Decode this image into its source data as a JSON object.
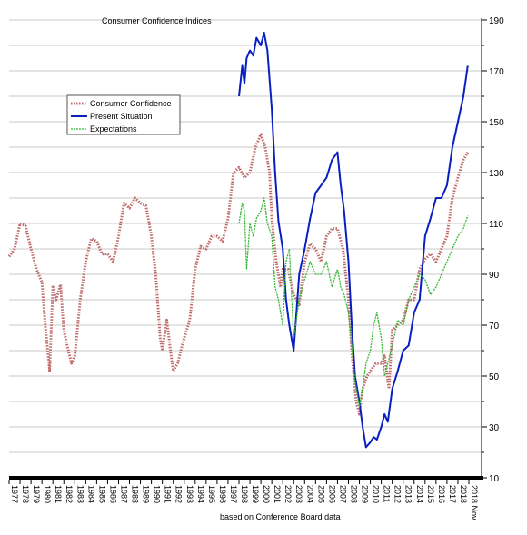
{
  "chart_data": {
    "type": "line",
    "title": "Consumer Confidence Indices",
    "source_note": "based on Conference Board data",
    "ylim": [
      10,
      190
    ],
    "yticks": [
      10,
      30,
      50,
      70,
      90,
      110,
      130,
      150,
      170,
      190
    ],
    "xlim": [
      1977,
      2019
    ],
    "x_tick_labels": [
      "1977",
      "1978",
      "1979",
      "1980",
      "1981",
      "1982",
      "1983",
      "1984",
      "1985",
      "1986",
      "1987",
      "1988",
      "1989",
      "1990",
      "1991",
      "1992",
      "1993",
      "1994",
      "1995",
      "1996",
      "1997",
      "1998",
      "1999",
      "2000",
      "2001",
      "2002",
      "2003",
      "2004",
      "2005",
      "2006",
      "2007",
      "2008",
      "2009",
      "2010",
      "2011",
      "2012",
      "2013",
      "2014",
      "2015",
      "2016",
      "2017",
      "2018",
      "2018 Nov"
    ],
    "grid": true,
    "legend_position": "upper-left",
    "series": [
      {
        "name": "Consumer Confidence",
        "color": "#c06a6a",
        "x": [
          1977.0,
          1977.5,
          1978.0,
          1978.5,
          1979.0,
          1979.5,
          1980.0,
          1980.3,
          1980.7,
          1981.0,
          1981.3,
          1981.7,
          1982.0,
          1982.3,
          1982.7,
          1983.0,
          1983.5,
          1984.0,
          1984.5,
          1985.0,
          1985.5,
          1986.0,
          1986.5,
          1987.0,
          1987.5,
          1988.0,
          1988.5,
          1989.0,
          1989.5,
          1990.0,
          1990.4,
          1990.8,
          1991.0,
          1991.4,
          1991.8,
          1992.0,
          1992.4,
          1992.8,
          1993.0,
          1993.5,
          1994.0,
          1994.5,
          1995.0,
          1995.5,
          1996.0,
          1996.5,
          1997.0,
          1997.5,
          1998.0,
          1998.5,
          1999.0,
          1999.5,
          2000.0,
          2000.4,
          2000.8,
          2001.0,
          2001.4,
          2001.8,
          2002.0,
          2002.5,
          2003.0,
          2003.5,
          2004.0,
          2004.5,
          2005.0,
          2005.5,
          2006.0,
          2006.5,
          2007.0,
          2007.5,
          2008.0,
          2008.3,
          2008.7,
          2009.0,
          2009.3,
          2009.7,
          2010.0,
          2010.5,
          2011.0,
          2011.3,
          2011.7,
          2012.0,
          2012.5,
          2013.0,
          2013.5,
          2014.0,
          2014.5,
          2015.0,
          2015.5,
          2016.0,
          2016.5,
          2017.0,
          2017.5,
          2018.0,
          2018.5,
          2018.9
        ],
        "values": [
          97,
          100,
          110,
          109,
          100,
          92,
          87,
          70,
          52,
          85,
          80,
          86,
          68,
          62,
          55,
          58,
          80,
          95,
          104,
          103,
          98,
          98,
          95,
          105,
          118,
          116,
          120,
          118,
          117,
          105,
          90,
          65,
          60,
          72,
          58,
          52,
          55,
          62,
          65,
          72,
          92,
          101,
          100,
          105,
          105,
          103,
          112,
          130,
          132,
          128,
          130,
          140,
          145,
          140,
          130,
          112,
          95,
          85,
          92,
          92,
          82,
          78,
          95,
          102,
          100,
          95,
          105,
          108,
          108,
          100,
          80,
          60,
          40,
          35,
          45,
          50,
          52,
          55,
          55,
          58,
          45,
          68,
          70,
          72,
          80,
          80,
          92,
          96,
          98,
          95,
          100,
          105,
          120,
          128,
          135,
          138
        ]
      },
      {
        "name": "Present Situation",
        "color": "#0a1fc0",
        "x": [
          1998.0,
          1998.3,
          1998.5,
          1998.7,
          1999.0,
          1999.3,
          1999.6,
          2000.0,
          2000.3,
          2000.6,
          2001.0,
          2001.3,
          2001.6,
          2002.0,
          2002.3,
          2002.6,
          2003.0,
          2003.5,
          2004.0,
          2004.5,
          2005.0,
          2005.5,
          2006.0,
          2006.5,
          2007.0,
          2007.3,
          2007.6,
          2008.0,
          2008.3,
          2008.6,
          2009.0,
          2009.3,
          2009.6,
          2010.0,
          2010.3,
          2010.6,
          2011.0,
          2011.3,
          2011.6,
          2012.0,
          2012.5,
          2013.0,
          2013.5,
          2014.0,
          2014.5,
          2015.0,
          2015.5,
          2016.0,
          2016.5,
          2017.0,
          2017.5,
          2018.0,
          2018.5,
          2018.9
        ],
        "values": [
          160,
          172,
          165,
          175,
          178,
          176,
          183,
          180,
          185,
          178,
          155,
          130,
          111,
          100,
          80,
          70,
          60,
          90,
          100,
          112,
          122,
          125,
          128,
          135,
          138,
          125,
          115,
          95,
          70,
          50,
          40,
          30,
          22,
          24,
          26,
          25,
          30,
          35,
          32,
          45,
          52,
          60,
          62,
          75,
          80,
          105,
          112,
          120,
          120,
          125,
          140,
          150,
          160,
          172
        ]
      },
      {
        "name": "Expectations",
        "color": "#2fb82f",
        "x": [
          1998.0,
          1998.3,
          1998.5,
          1998.7,
          1999.0,
          1999.3,
          1999.6,
          2000.0,
          2000.3,
          2000.6,
          2001.0,
          2001.3,
          2001.6,
          2002.0,
          2002.3,
          2002.6,
          2003.0,
          2003.5,
          2004.0,
          2004.5,
          2005.0,
          2005.5,
          2006.0,
          2006.5,
          2007.0,
          2007.3,
          2007.6,
          2008.0,
          2008.3,
          2008.6,
          2009.0,
          2009.3,
          2009.6,
          2010.0,
          2010.3,
          2010.6,
          2011.0,
          2011.3,
          2011.6,
          2012.0,
          2012.5,
          2013.0,
          2013.5,
          2014.0,
          2014.5,
          2015.0,
          2015.5,
          2016.0,
          2016.5,
          2017.0,
          2017.5,
          2018.0,
          2018.5,
          2018.9
        ],
        "values": [
          110,
          118,
          115,
          92,
          110,
          105,
          112,
          115,
          120,
          110,
          105,
          85,
          80,
          70,
          95,
          100,
          65,
          80,
          88,
          95,
          90,
          90,
          95,
          85,
          92,
          85,
          82,
          75,
          62,
          48,
          38,
          45,
          55,
          60,
          70,
          75,
          65,
          50,
          55,
          62,
          72,
          70,
          80,
          85,
          90,
          88,
          82,
          85,
          90,
          95,
          100,
          105,
          108,
          113
        ]
      }
    ]
  }
}
